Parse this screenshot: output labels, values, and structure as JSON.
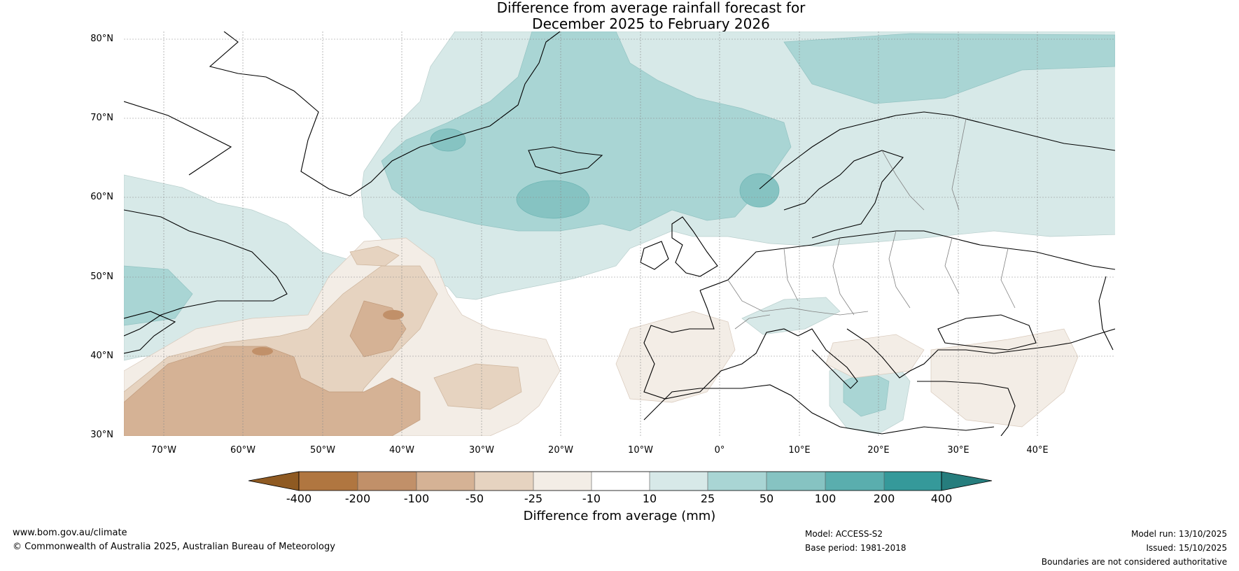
{
  "title": {
    "line1": "Difference from average rainfall forecast for",
    "line2": "December 2025 to February 2026"
  },
  "map": {
    "lat_labels": [
      "80°N",
      "70°N",
      "60°N",
      "50°N",
      "40°N",
      "30°N"
    ],
    "lon_labels": [
      "70°W",
      "60°W",
      "50°W",
      "40°W",
      "30°W",
      "20°W",
      "10°W",
      "0°",
      "10°E",
      "20°E",
      "30°E",
      "40°E"
    ]
  },
  "colorbar": {
    "label": "Difference from average (mm)",
    "ticks": [
      "-400",
      "-200",
      "-100",
      "-50",
      "-25",
      "-10",
      "10",
      "25",
      "50",
      "100",
      "200",
      "400"
    ],
    "colors": [
      "#8f5a22",
      "#b07640",
      "#c19069",
      "#d5b295",
      "#e6d3c0",
      "#f3ede6",
      "#ffffff",
      "#d7e9e8",
      "#a9d5d4",
      "#86c3c2",
      "#5aaeae",
      "#35999a",
      "#267d7d"
    ]
  },
  "footer": {
    "website": "www.bom.gov.au/climate",
    "copyright": "© Commonwealth of Australia 2025, Australian Bureau of Meteorology",
    "model": "Model: ACCESS-S2",
    "base_period": "Base period: 1981-2018",
    "model_run": "Model run: 13/10/2025",
    "issued": "Issued: 15/10/2025",
    "disclaimer": "Boundaries are not considered authoritative"
  }
}
